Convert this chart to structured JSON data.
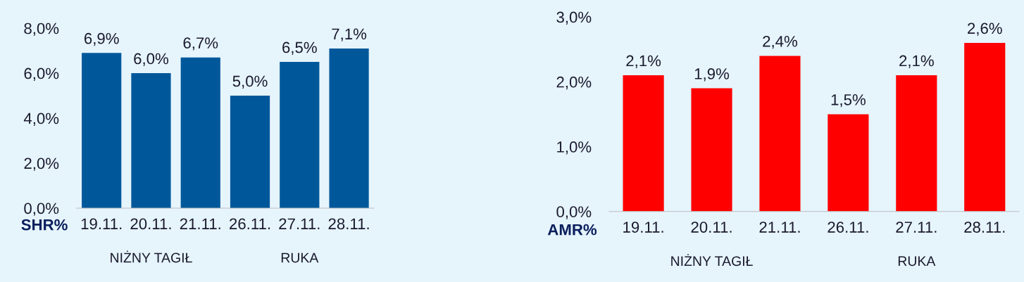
{
  "chart_data": [
    {
      "type": "bar",
      "xlabel": "SHR%",
      "categories": [
        "19.11.",
        "20.11.",
        "21.11.",
        "26.11.",
        "27.11.",
        "28.11."
      ],
      "values": [
        6.9,
        6.0,
        6.7,
        5.0,
        6.5,
        7.1
      ],
      "value_labels": [
        "6,9%",
        "6,0%",
        "6,7%",
        "5,0%",
        "6,5%",
        "7,1%"
      ],
      "color": "#00589b",
      "ylim": [
        0,
        8
      ],
      "yticks": [
        {
          "value": 0,
          "label": "0,0%"
        },
        {
          "value": 2,
          "label": "2,0%"
        },
        {
          "value": 4,
          "label": "4,0%"
        },
        {
          "value": 6,
          "label": "6,0%"
        },
        {
          "value": 8,
          "label": "8,0%"
        }
      ],
      "grid": false,
      "annotations": [
        "NIŻNY TAGIŁ",
        "RUKA"
      ]
    },
    {
      "type": "bar",
      "xlabel": "AMR%",
      "categories": [
        "19.11.",
        "20.11.",
        "21.11.",
        "26.11.",
        "27.11.",
        "28.11."
      ],
      "values": [
        2.1,
        1.9,
        2.4,
        1.5,
        2.1,
        2.6
      ],
      "value_labels": [
        "2,1%",
        "1,9%",
        "2,4%",
        "1,5%",
        "2,1%",
        "2,6%"
      ],
      "color": "#ff0000",
      "ylim": [
        0,
        3
      ],
      "yticks": [
        {
          "value": 0,
          "label": "0,0%"
        },
        {
          "value": 1,
          "label": "1,0%"
        },
        {
          "value": 2,
          "label": "2,0%"
        },
        {
          "value": 3,
          "label": "3,0%"
        }
      ],
      "grid": false,
      "annotations": [
        "NIŻNY TAGIŁ",
        "RUKA"
      ]
    }
  ]
}
